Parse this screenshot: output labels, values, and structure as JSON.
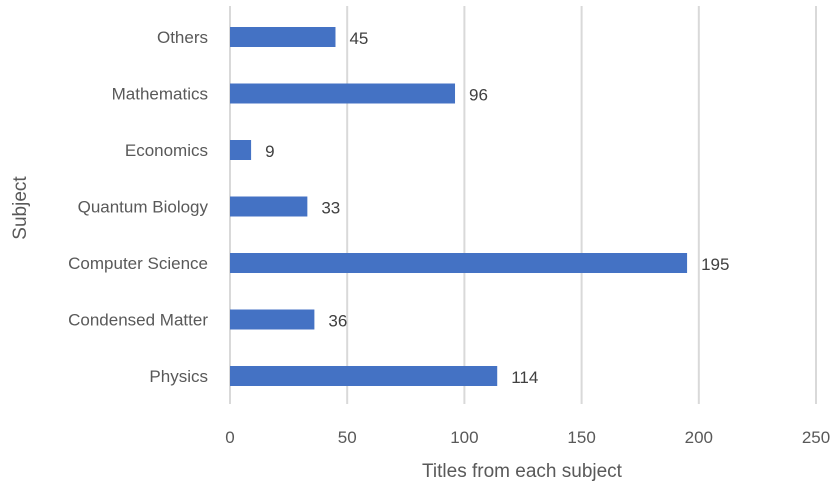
{
  "chart_data": {
    "type": "bar",
    "orientation": "horizontal",
    "categories": [
      "Others",
      "Mathematics",
      "Economics",
      "Quantum Biology",
      "Computer Science",
      "Condensed Matter",
      "Physics"
    ],
    "values": [
      45,
      96,
      9,
      33,
      195,
      36,
      114
    ],
    "data_labels": [
      "45",
      "96",
      "9",
      "33",
      "195",
      "36",
      "114"
    ],
    "xlabel": "Titles from each subject",
    "ylabel": "Subject",
    "xlim": [
      0,
      250
    ],
    "x_ticks": [
      0,
      50,
      100,
      150,
      200,
      250
    ],
    "x_tick_labels": [
      "0",
      "50",
      "100",
      "150",
      "200",
      "250"
    ],
    "grid": "vertical",
    "legend": "none",
    "bar_color": "#4472C4"
  }
}
